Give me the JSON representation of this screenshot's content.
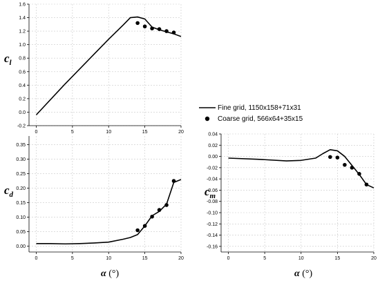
{
  "chart_data": [
    {
      "id": "cl",
      "type": "line",
      "ylabel": "c_l",
      "xlabel": "",
      "xlim": [
        -1,
        20
      ],
      "ylim": [
        -0.2,
        1.6
      ],
      "xticks": [
        0,
        5,
        10,
        15,
        20
      ],
      "xtick_labels": [
        "0",
        "5",
        "10",
        "15",
        "20"
      ],
      "yticks": [
        -0.2,
        0,
        0.2,
        0.4,
        0.6,
        0.8,
        1.0,
        1.2,
        1.4,
        1.6
      ],
      "ytick_labels": [
        "-0.2",
        "0.0",
        "0.2",
        "0.4",
        "0.6",
        "0.8",
        "1.0",
        "1.2",
        "1.4",
        "1.6"
      ],
      "grid": true,
      "series": [
        {
          "x": [
            0,
            4,
            8,
            10,
            12,
            13,
            14,
            15,
            16,
            17,
            18,
            19,
            20
          ],
          "y": [
            -0.04,
            0.42,
            0.86,
            1.08,
            1.29,
            1.4,
            1.41,
            1.38,
            1.26,
            1.22,
            1.19,
            1.16,
            1.12
          ]
        },
        {
          "x": [
            14,
            15,
            16,
            17,
            18,
            19
          ],
          "y": [
            1.32,
            1.27,
            1.24,
            1.23,
            1.2,
            1.18
          ]
        }
      ]
    },
    {
      "id": "cd",
      "type": "line",
      "ylabel": "c_d",
      "xlabel": "α (°)",
      "xlim": [
        -1,
        20
      ],
      "ylim": [
        -0.02,
        0.38
      ],
      "xticks": [
        0,
        5,
        10,
        15,
        20
      ],
      "xtick_labels": [
        "0",
        "5",
        "10",
        "15",
        "20"
      ],
      "yticks": [
        0.0,
        0.05,
        0.1,
        0.15,
        0.2,
        0.25,
        0.3,
        0.35
      ],
      "ytick_labels": [
        "0.00",
        "0.05",
        "0.10",
        "0.15",
        "0.20",
        "0.25",
        "0.30",
        "0.35"
      ],
      "grid": true,
      "series": [
        {
          "x": [
            0,
            2,
            4,
            6,
            8,
            10,
            12,
            13,
            14,
            15,
            16,
            17,
            18,
            19,
            20
          ],
          "y": [
            0.009,
            0.009,
            0.008,
            0.009,
            0.011,
            0.014,
            0.024,
            0.03,
            0.04,
            0.07,
            0.105,
            0.12,
            0.145,
            0.22,
            0.23
          ]
        },
        {
          "x": [
            14,
            15,
            16,
            17,
            18,
            19
          ],
          "y": [
            0.055,
            0.07,
            0.102,
            0.125,
            0.142,
            0.225
          ]
        }
      ]
    },
    {
      "id": "cm",
      "type": "line",
      "ylabel": "c_m",
      "xlabel": "α (°)",
      "xlim": [
        -1,
        20
      ],
      "ylim": [
        -0.17,
        0.04
      ],
      "xticks": [
        0,
        5,
        10,
        15,
        20
      ],
      "xtick_labels": [
        "0",
        "5",
        "10",
        "15",
        "20"
      ],
      "yticks": [
        0.04,
        0.02,
        0.0,
        -0.02,
        -0.04,
        -0.06,
        -0.08,
        -0.1,
        -0.12,
        -0.14,
        -0.16
      ],
      "ytick_labels": [
        "0.04",
        "0.02",
        "0.00",
        "-0.02",
        "-0.04",
        "-0.06",
        "-0.08",
        "-0.10",
        "-0.12",
        "-0.14",
        "-0.16"
      ],
      "grid": true,
      "series": [
        {
          "x": [
            0,
            4,
            8,
            10,
            12,
            13,
            14,
            15,
            16,
            17,
            18,
            19,
            20
          ],
          "y": [
            -0.003,
            -0.005,
            -0.008,
            -0.007,
            -0.003,
            0.005,
            0.012,
            0.01,
            0.0,
            -0.016,
            -0.032,
            -0.05,
            -0.056
          ]
        },
        {
          "x": [
            14,
            15,
            16,
            17,
            18,
            19
          ],
          "y": [
            -0.001,
            -0.002,
            -0.015,
            -0.02,
            -0.031,
            -0.05
          ]
        }
      ]
    }
  ],
  "legend": {
    "entries": [
      {
        "label": "Fine grid, 1150x158+71x31",
        "marker": "line"
      },
      {
        "label": "Coarse grid, 566x64+35x15",
        "marker": "dot"
      }
    ]
  }
}
